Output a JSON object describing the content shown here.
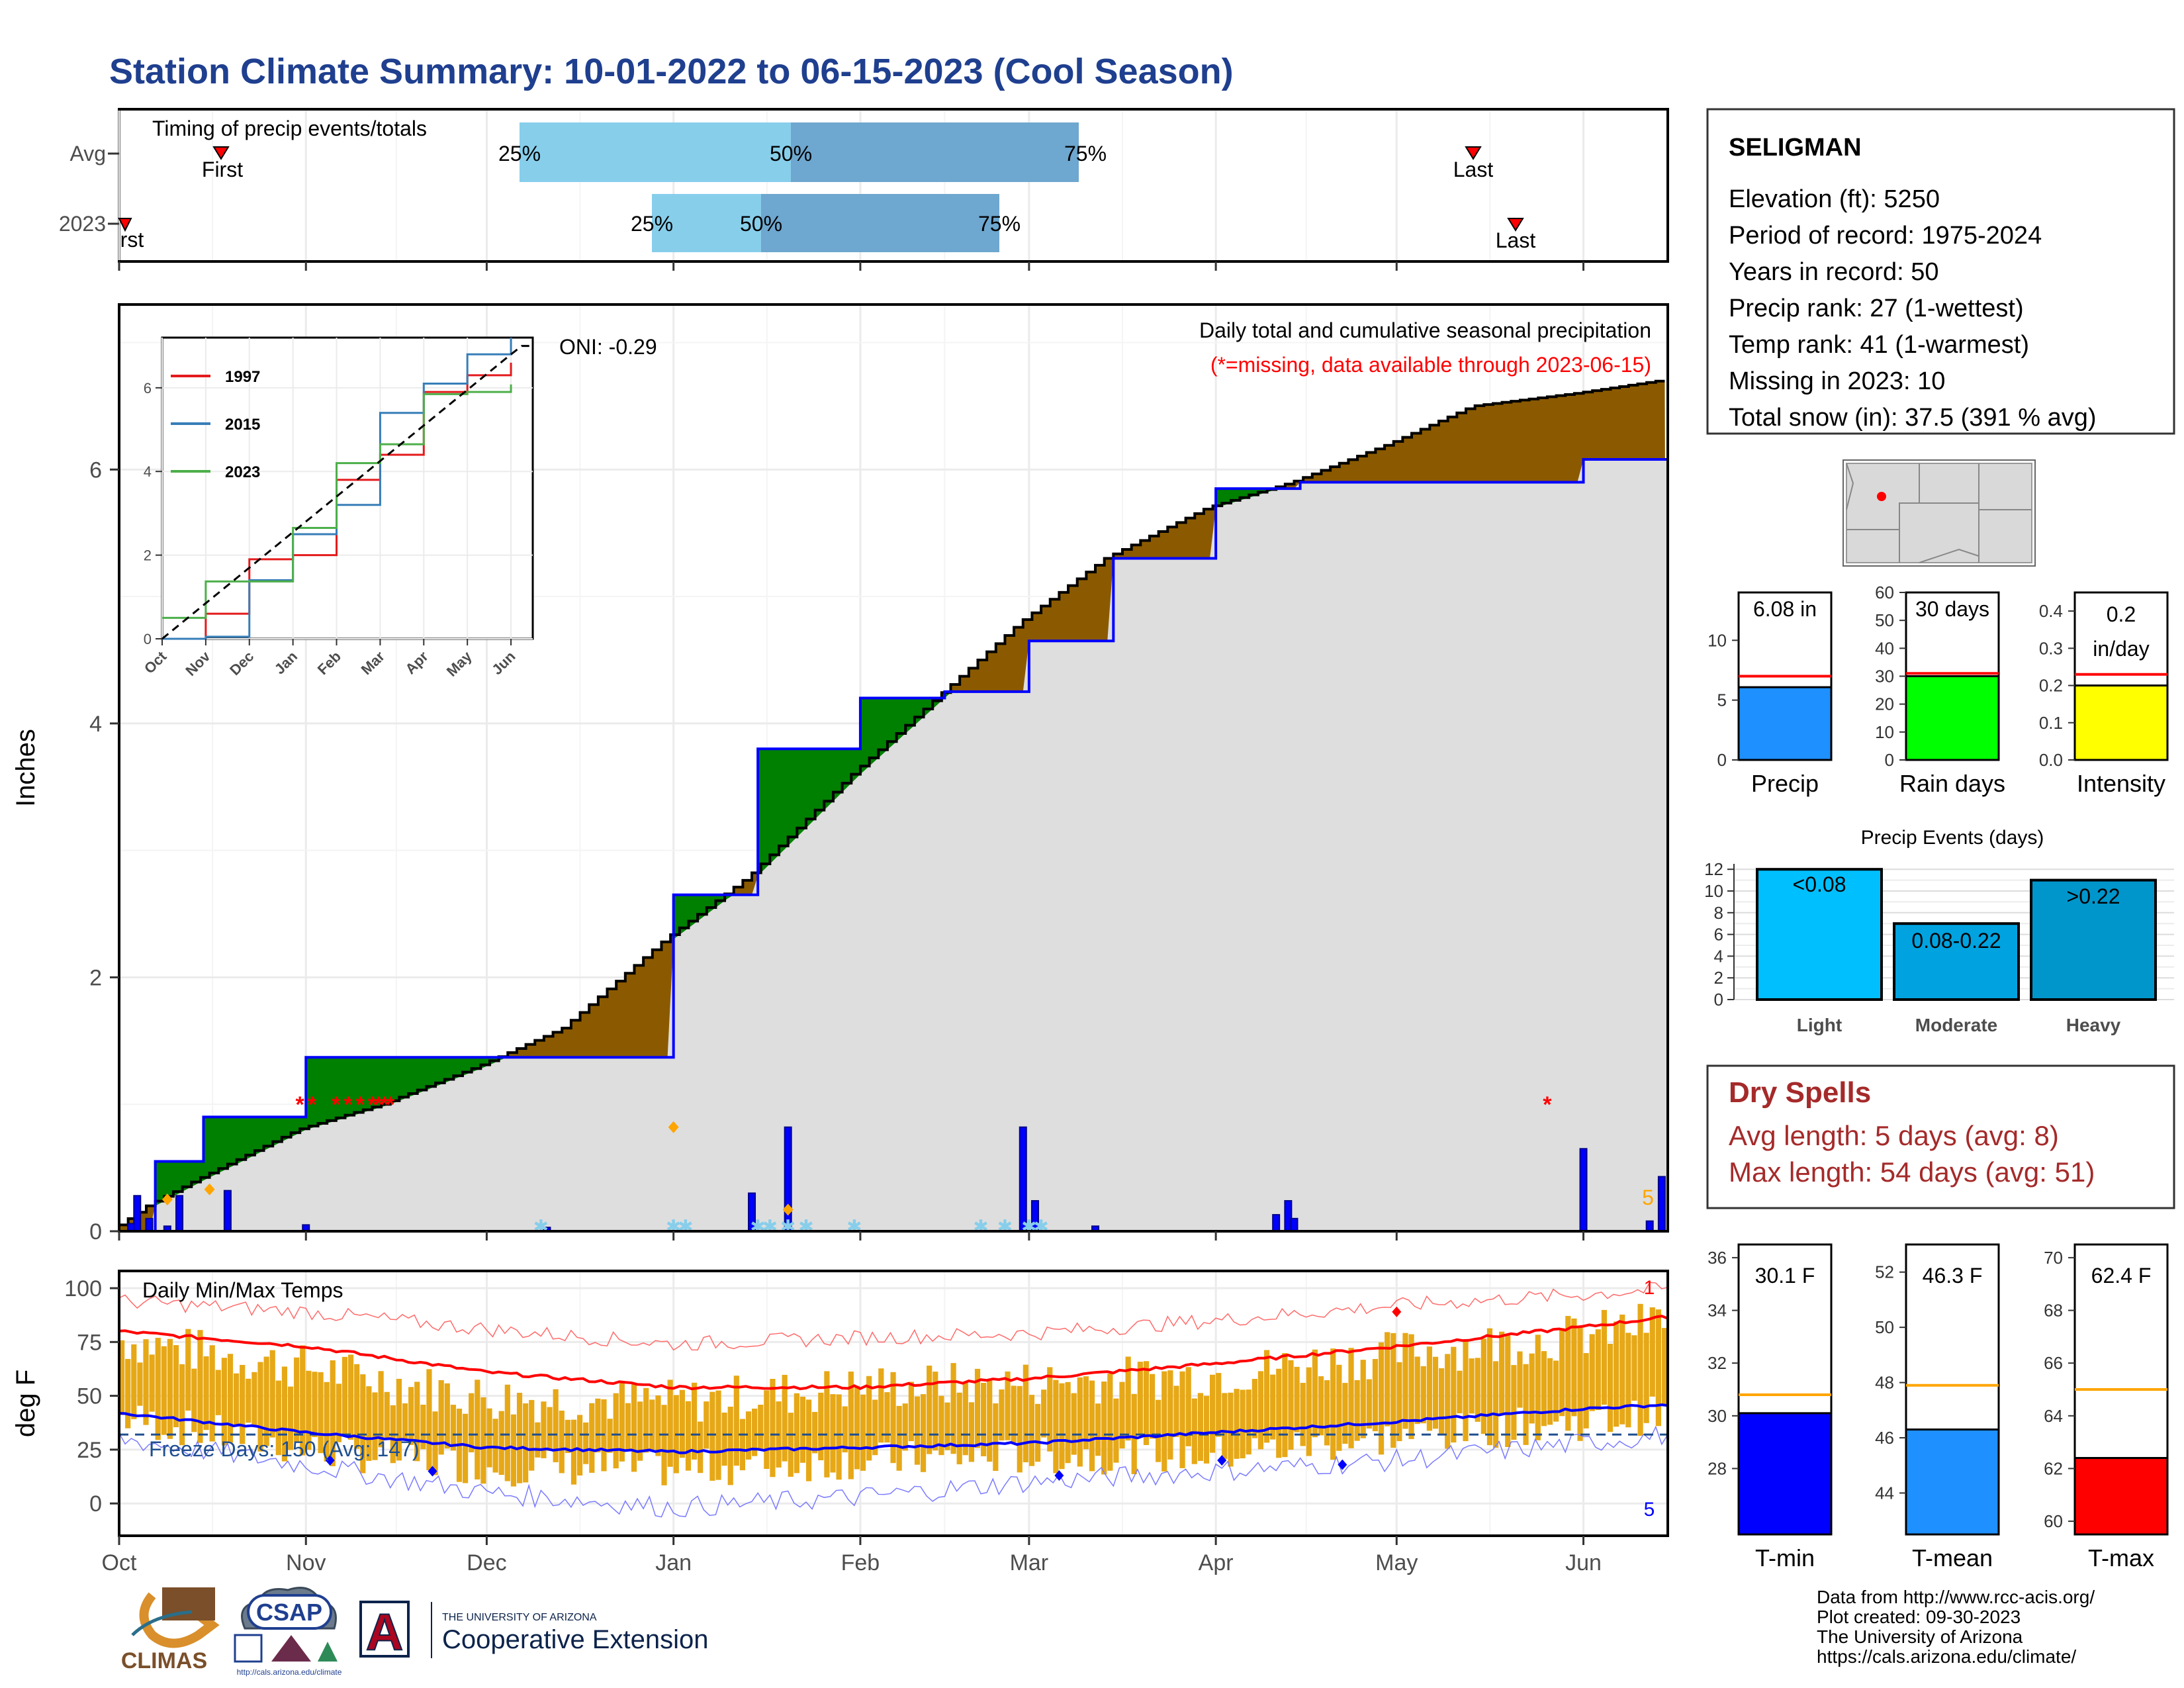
{
  "page_title": "Station Climate Summary: 10-01-2022 to 06-15-2023 (Cool Season)",
  "colors": {
    "title": "#1f3f8f",
    "green": "#008000",
    "brown": "#8b5a00",
    "gray": "#dedede",
    "blue": "#0000ff",
    "red": "#ff0000",
    "orange": "#e6a817",
    "light_blue": "#87ceeb",
    "mid_blue": "#6ea7cf",
    "dry_spell_red": "#a52a2a"
  },
  "timing_panel": {
    "title": "Timing of precip events/totals",
    "rows": [
      {
        "label": "Avg",
        "first_label": "First",
        "last_label": "Last",
        "p25": "25%",
        "p50": "50%",
        "p75": "75%"
      },
      {
        "label": "2023",
        "first_label": "First",
        "last_label": "Last",
        "p25": "25%",
        "p50": "50%",
        "p75": "75%"
      }
    ]
  },
  "precip_panel": {
    "ylabel": "Inches",
    "title": "Daily total and cumulative seasonal precipitation",
    "subtitle": "(*=missing, data available through 2023-06-15)",
    "oni": "ONI: -0.29",
    "corner_count": "5",
    "yticks": [
      "0",
      "2",
      "4",
      "6"
    ]
  },
  "inset": {
    "legend": [
      "1997",
      "2015",
      "2023"
    ],
    "legend_colors": [
      "#e41a1c",
      "#377eb8",
      "#4daf4a"
    ],
    "yticks": [
      "0",
      "2",
      "4",
      "6"
    ],
    "xticks": [
      "Oct",
      "Nov",
      "Dec",
      "Jan",
      "Feb",
      "Mar",
      "Apr",
      "May",
      "Jun"
    ]
  },
  "temp_panel": {
    "ylabel": "deg F",
    "title": "Daily Min/Max Temps",
    "freeze_label": "Freeze Days: 150 (Avg: 147)",
    "max_count": "1",
    "min_count": "5",
    "yticks": [
      "0",
      "25",
      "50",
      "75",
      "100"
    ]
  },
  "x_axis": {
    "ticks": [
      "Oct",
      "Nov",
      "Dec",
      "Jan",
      "Feb",
      "Mar",
      "Apr",
      "May",
      "Jun"
    ]
  },
  "station": {
    "name": "SELIGMAN",
    "lines": [
      "Elevation (ft): 5250",
      "Period of record: 1975-2024",
      "Years in record: 50",
      "Precip rank: 27 (1-wettest)",
      "Temp rank: 41 (1-warmest)",
      "Missing in 2023: 10",
      "Total snow (in): 37.5 (391 % avg)"
    ]
  },
  "season_bars": {
    "precip": {
      "label": "Precip",
      "value_text": "6.08 in",
      "yticks": [
        "0",
        "5",
        "10"
      ]
    },
    "rain_days": {
      "label": "Rain days",
      "value_text": "30 days",
      "yticks": [
        "0",
        "10",
        "20",
        "30",
        "40",
        "50",
        "60"
      ]
    },
    "intensity": {
      "label": "Intensity",
      "value_text": "0.2",
      "value_text2": "in/day",
      "yticks": [
        "0.0",
        "0.1",
        "0.2",
        "0.3",
        "0.4"
      ]
    }
  },
  "precip_events": {
    "title": "Precip Events (days)",
    "bars": [
      {
        "label": "<0.08",
        "cat": "Light"
      },
      {
        "label": "0.08-0.22",
        "cat": "Moderate"
      },
      {
        "label": ">0.22",
        "cat": "Heavy"
      }
    ],
    "yticks": [
      "0",
      "2",
      "4",
      "6",
      "8",
      "10",
      "12"
    ]
  },
  "dry_spells": {
    "title": "Dry Spells",
    "avg": "Avg length: 5 days (avg: 8)",
    "max": "Max length: 54 days (avg: 51)"
  },
  "temp_bars": {
    "tmin": {
      "label": "T-min",
      "value_text": "30.1 F",
      "yticks": [
        "28",
        "30",
        "32",
        "34",
        "36"
      ]
    },
    "tmean": {
      "label": "T-mean",
      "value_text": "46.3 F",
      "yticks": [
        "44",
        "46",
        "48",
        "50",
        "52"
      ]
    },
    "tmax": {
      "label": "T-max",
      "value_text": "62.4 F",
      "yticks": [
        "60",
        "62",
        "64",
        "66",
        "68",
        "70"
      ]
    }
  },
  "footer": {
    "lines": [
      "Data from http://www.rcc-acis.org/",
      "Plot created: 09-30-2023",
      "The University of Arizona",
      "https://cals.arizona.edu/climate/"
    ],
    "logo_climas": "CLIMAS",
    "logo_csap": "CSAP",
    "logo_csap_url": "http://cals.arizona.edu/climate",
    "ua_small": "THE UNIVERSITY OF ARIZONA",
    "ua_big": "Cooperative Extension",
    "ua_letter": "A"
  },
  "chart_data": [
    {
      "type": "area",
      "name": "cumulative_precip",
      "x_dates": [
        "2022-10-01",
        "2022-10-07",
        "2022-10-15",
        "2022-11-01",
        "2022-11-15",
        "2022-12-01",
        "2022-12-15",
        "2023-01-01",
        "2023-01-15",
        "2023-02-01",
        "2023-02-15",
        "2023-03-01",
        "2023-03-15",
        "2023-04-01",
        "2023-04-15",
        "2023-05-01",
        "2023-05-15",
        "2023-06-01",
        "2023-06-15"
      ],
      "avg_cumulative": [
        0.0,
        0.2,
        0.4,
        0.8,
        1.0,
        1.3,
        1.6,
        2.3,
        2.8,
        3.6,
        4.2,
        4.8,
        5.3,
        5.7,
        5.9,
        6.2,
        6.5,
        6.6,
        6.7
      ],
      "season_2023_cumulative": [
        0.0,
        0.55,
        0.9,
        1.37,
        1.37,
        1.37,
        1.37,
        2.65,
        3.8,
        4.2,
        4.25,
        4.65,
        5.3,
        5.85,
        5.9,
        5.9,
        5.9,
        6.08,
        6.08
      ],
      "ylim": [
        0,
        7.3
      ]
    },
    {
      "type": "bar",
      "name": "daily_precip",
      "days_since_oct1": [
        2,
        3,
        5,
        8,
        10,
        18,
        31,
        71,
        105,
        111,
        150,
        152,
        162,
        192,
        194,
        195,
        243,
        254,
        256,
        266,
        278,
        291,
        345,
        356
      ],
      "values": [
        0.06,
        0.28,
        0.1,
        0.04,
        0.28,
        0.32,
        0.05,
        0.03,
        0.3,
        0.82,
        0.82,
        0.24,
        0.04,
        0.13,
        0.24,
        0.1,
        0.65,
        0.08,
        0.43,
        0.05,
        0.08,
        0.05,
        0.05,
        0.05
      ]
    },
    {
      "type": "line",
      "name": "inset_cumulative",
      "series": [
        {
          "name": "1997",
          "x_month": [
            0,
            1,
            2,
            3,
            4,
            5,
            6,
            7,
            8
          ],
          "values": [
            0.0,
            0.6,
            1.9,
            2.0,
            3.8,
            4.4,
            5.9,
            6.3,
            6.6
          ]
        },
        {
          "name": "2015",
          "x_month": [
            0,
            1,
            2,
            3,
            4,
            5,
            6,
            7,
            8
          ],
          "values": [
            0.0,
            0.05,
            1.4,
            2.5,
            3.2,
            5.4,
            6.1,
            6.8,
            7.2
          ]
        },
        {
          "name": "2023",
          "x_month": [
            0,
            1,
            2,
            3,
            4,
            5,
            6,
            7,
            8
          ],
          "values": [
            0.5,
            1.37,
            1.37,
            2.65,
            4.2,
            4.65,
            5.85,
            5.9,
            6.08
          ]
        }
      ]
    },
    {
      "type": "line",
      "name": "temps",
      "x_month": [
        0,
        1,
        2,
        3,
        4,
        5,
        6,
        7,
        8,
        8.5
      ],
      "avg_max": [
        80,
        73,
        61,
        54,
        54,
        58,
        65,
        73,
        82,
        87
      ],
      "avg_min": [
        42,
        33,
        26,
        24,
        26,
        28,
        33,
        38,
        44,
        46
      ],
      "record_max": [
        94,
        89,
        81,
        74,
        77,
        79,
        85,
        92,
        97,
        100
      ],
      "record_min": [
        30,
        18,
        5,
        -2,
        3,
        10,
        15,
        20,
        28,
        32
      ],
      "obs_max": [
        76,
        63,
        49,
        47,
        54,
        56,
        60,
        70,
        78,
        86
      ],
      "obs_min": [
        40,
        25,
        17,
        16,
        20,
        22,
        23,
        31,
        38,
        42
      ],
      "freeze_line": 32,
      "ylim": [
        -15,
        108
      ]
    },
    {
      "type": "bar",
      "name": "season_precip",
      "values": [
        6.08
      ],
      "avg": 7.0,
      "ylim": [
        0,
        14
      ]
    },
    {
      "type": "bar",
      "name": "rain_days",
      "values": [
        30
      ],
      "avg": 31,
      "ylim": [
        0,
        60
      ]
    },
    {
      "type": "bar",
      "name": "intensity",
      "values": [
        0.2
      ],
      "avg": 0.23,
      "ylim": [
        0,
        0.45
      ]
    },
    {
      "type": "bar",
      "name": "precip_events",
      "categories": [
        "Light",
        "Moderate",
        "Heavy"
      ],
      "values": [
        12,
        7,
        11
      ],
      "ylim": [
        0,
        12.5
      ]
    },
    {
      "type": "bar",
      "name": "tmin",
      "values": [
        30.1
      ],
      "avg": 30.8,
      "ylim": [
        25.5,
        36.5
      ]
    },
    {
      "type": "bar",
      "name": "tmean",
      "values": [
        46.3
      ],
      "avg": 47.9,
      "ylim": [
        42.5,
        53
      ]
    },
    {
      "type": "bar",
      "name": "tmax",
      "values": [
        62.4
      ],
      "avg": 65.0,
      "ylim": [
        59.5,
        70.5
      ]
    }
  ]
}
